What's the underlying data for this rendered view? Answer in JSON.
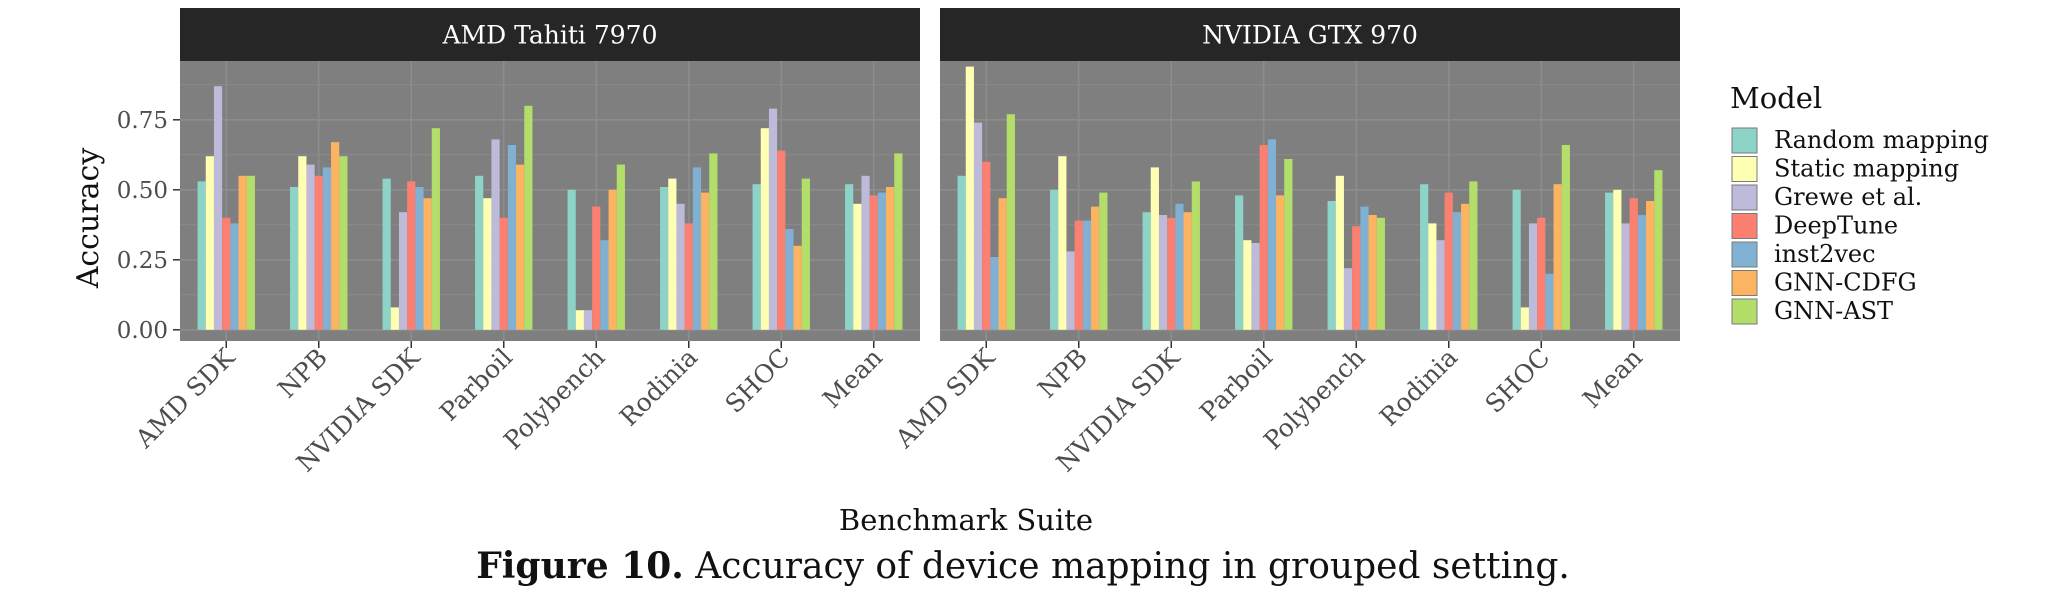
{
  "figure": {
    "caption_label": "Figure 10.",
    "caption_text": "Accuracy of device mapping in grouped setting."
  },
  "colors": {
    "panel_bg": "#7f7f7f",
    "strip_bg": "#262626",
    "strip_text": "#ffffff",
    "grid": "#8d8d8d"
  },
  "chart_data": {
    "type": "bar",
    "xlabel": "Benchmark Suite",
    "ylabel": "Accuracy",
    "ylim": [
      -0.04,
      0.96
    ],
    "yticks": [
      0.0,
      0.25,
      0.5,
      0.75
    ],
    "ytick_labels": [
      "0.00",
      "0.25",
      "0.50",
      "0.75"
    ],
    "grid": true,
    "legend": {
      "title": "Model",
      "position": "right",
      "entries": [
        {
          "name": "Random mapping",
          "color": "#8dd3c7"
        },
        {
          "name": "Static mapping",
          "color": "#ffffb3"
        },
        {
          "name": "Grewe et al.",
          "color": "#bebada"
        },
        {
          "name": "DeepTune",
          "color": "#fb8072"
        },
        {
          "name": "inst2vec",
          "color": "#80b1d3"
        },
        {
          "name": "GNN-CDFG",
          "color": "#fdb462"
        },
        {
          "name": "GNN-AST",
          "color": "#b3de69"
        }
      ]
    },
    "categories": [
      "AMD SDK",
      "NPB",
      "NVIDIA SDK",
      "Parboil",
      "Polybench",
      "Rodinia",
      "SHOC",
      "Mean"
    ],
    "panels": [
      {
        "title": "AMD Tahiti 7970",
        "series": [
          {
            "name": "Random mapping",
            "values": [
              0.53,
              0.51,
              0.54,
              0.55,
              0.5,
              0.51,
              0.52,
              0.52
            ]
          },
          {
            "name": "Static mapping",
            "values": [
              0.62,
              0.62,
              0.08,
              0.47,
              0.07,
              0.54,
              0.72,
              0.45
            ]
          },
          {
            "name": "Grewe et al.",
            "values": [
              0.87,
              0.59,
              0.42,
              0.68,
              0.07,
              0.45,
              0.79,
              0.55
            ]
          },
          {
            "name": "DeepTune",
            "values": [
              0.4,
              0.55,
              0.53,
              0.4,
              0.44,
              0.38,
              0.64,
              0.48
            ]
          },
          {
            "name": "inst2vec",
            "values": [
              0.38,
              0.58,
              0.51,
              0.66,
              0.32,
              0.58,
              0.36,
              0.49
            ]
          },
          {
            "name": "GNN-CDFG",
            "values": [
              0.55,
              0.67,
              0.47,
              0.59,
              0.5,
              0.49,
              0.3,
              0.51
            ]
          },
          {
            "name": "GNN-AST",
            "values": [
              0.55,
              0.62,
              0.72,
              0.8,
              0.59,
              0.63,
              0.54,
              0.63
            ]
          }
        ]
      },
      {
        "title": "NVIDIA GTX 970",
        "series": [
          {
            "name": "Random mapping",
            "values": [
              0.55,
              0.5,
              0.42,
              0.48,
              0.46,
              0.52,
              0.5,
              0.49
            ]
          },
          {
            "name": "Static mapping",
            "values": [
              0.94,
              0.62,
              0.58,
              0.32,
              0.55,
              0.38,
              0.08,
              0.5
            ]
          },
          {
            "name": "Grewe et al.",
            "values": [
              0.74,
              0.28,
              0.41,
              0.31,
              0.22,
              0.32,
              0.38,
              0.38
            ]
          },
          {
            "name": "DeepTune",
            "values": [
              0.6,
              0.39,
              0.4,
              0.66,
              0.37,
              0.49,
              0.4,
              0.47
            ]
          },
          {
            "name": "inst2vec",
            "values": [
              0.26,
              0.39,
              0.45,
              0.68,
              0.44,
              0.42,
              0.2,
              0.41
            ]
          },
          {
            "name": "GNN-CDFG",
            "values": [
              0.47,
              0.44,
              0.42,
              0.48,
              0.41,
              0.45,
              0.52,
              0.46
            ]
          },
          {
            "name": "GNN-AST",
            "values": [
              0.77,
              0.49,
              0.53,
              0.61,
              0.4,
              0.53,
              0.66,
              0.57
            ]
          }
        ]
      }
    ]
  }
}
